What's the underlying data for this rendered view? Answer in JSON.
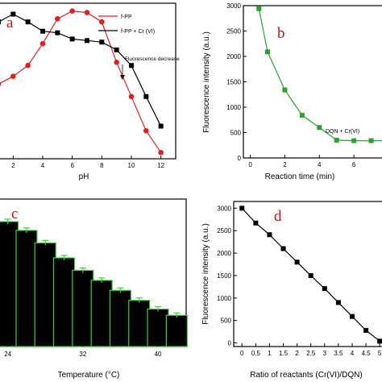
{
  "chart_data": [
    {
      "id": "a",
      "type": "line",
      "panel_label": "a",
      "xlabel": "pH",
      "ylabel": "",
      "xlim": [
        1,
        13
      ],
      "ylim": [
        0,
        100
      ],
      "x_ticks": [
        "2",
        "4",
        "6",
        "8",
        "10",
        "12"
      ],
      "x_tick_values": [
        2,
        4,
        6,
        8,
        10,
        12
      ],
      "series": [
        {
          "name": "f-PP",
          "color": "#e02020",
          "marker": "circle",
          "x": [
            1,
            2,
            3,
            4,
            5,
            6,
            7,
            8,
            9,
            10,
            11,
            12
          ],
          "y": [
            48,
            53,
            60,
            74,
            90,
            95,
            94,
            88,
            62,
            40,
            18,
            4
          ]
        },
        {
          "name": "f-PP + Cr (VI)",
          "color": "#000000",
          "marker": "square",
          "x": [
            1,
            2,
            3,
            4,
            5,
            6,
            7,
            8,
            9,
            10,
            11,
            12
          ],
          "y": [
            88,
            93,
            88,
            82,
            81,
            77,
            76,
            75,
            70,
            60,
            40,
            21
          ]
        }
      ],
      "annotation": "Fluorescence decrease",
      "legend": "top-right"
    },
    {
      "id": "b",
      "type": "line",
      "panel_label": "b",
      "xlabel": "Reaction time (min)",
      "ylabel": "Fluorescence intensity (a.u.)",
      "xlim": [
        -0.4,
        8
      ],
      "ylim": [
        0,
        3000
      ],
      "x_ticks": [
        "0",
        "2",
        "4",
        "6"
      ],
      "x_tick_values": [
        0,
        2,
        4,
        6
      ],
      "y_ticks": [
        "0",
        "500",
        "1000",
        "1500",
        "2000",
        "2500",
        "3000"
      ],
      "y_tick_values": [
        0,
        500,
        1000,
        1500,
        2000,
        2500,
        3000
      ],
      "series": [
        {
          "name": "DQN + Cr(VI)",
          "color": "#2ea02e",
          "marker": "square",
          "x": [
            0.5,
            1,
            2,
            3,
            4,
            5,
            6,
            7,
            8
          ],
          "y": [
            2940,
            2090,
            1340,
            840,
            600,
            350,
            340,
            340,
            340
          ]
        }
      ]
    },
    {
      "id": "c",
      "type": "bar",
      "panel_label": "c",
      "xlabel": "Temperature (°C)",
      "ylabel": "",
      "ylim": [
        0,
        100
      ],
      "x_ticks": [
        "24",
        "32",
        "40"
      ],
      "x_tick_values": [
        24,
        32,
        40
      ],
      "categories": [
        24,
        26,
        28,
        30,
        32,
        34,
        36,
        38,
        40,
        42
      ],
      "values": [
        100,
        93,
        83,
        71,
        61,
        53,
        45,
        37,
        30,
        25
      ],
      "bar_color": "#000000",
      "bar_edge_color": "#3ad23a",
      "error_color": "#3ad23a"
    },
    {
      "id": "d",
      "type": "line",
      "panel_label": "d",
      "xlabel": "Ratio of reactants (Cr(VI)/DQN)",
      "ylabel": "Fluorescence intensity (a.u.)",
      "xlim": [
        -0.3,
        5.2
      ],
      "ylim": [
        -80,
        3150
      ],
      "x_ticks": [
        "0",
        "0.5",
        "1",
        "1.5",
        "2",
        "2.5",
        "3",
        "3.5",
        "4",
        "4.5",
        "5"
      ],
      "x_tick_values": [
        0,
        0.5,
        1,
        1.5,
        2,
        2.5,
        3,
        3.5,
        4,
        4.5,
        5
      ],
      "y_ticks": [
        "0",
        "500",
        "1000",
        "1500",
        "2000",
        "2500",
        "3000"
      ],
      "y_tick_values": [
        0,
        500,
        1000,
        1500,
        2000,
        2500,
        3000
      ],
      "series": [
        {
          "name": "",
          "color": "#000000",
          "marker": "square",
          "x": [
            0,
            0.5,
            1,
            1.5,
            2,
            2.5,
            3,
            3.5,
            4,
            4.5,
            5
          ],
          "y": [
            3000,
            2670,
            2410,
            2100,
            1800,
            1500,
            1210,
            900,
            590,
            280,
            40
          ]
        }
      ]
    }
  ]
}
